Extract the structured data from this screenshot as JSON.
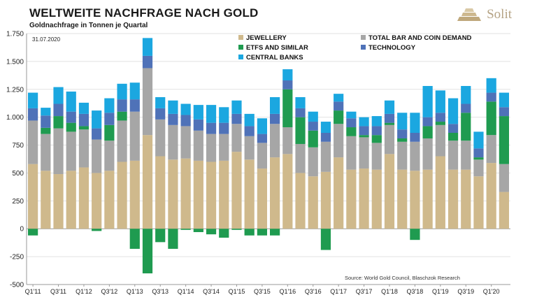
{
  "header": {
    "title": "WELTWEITE NACHFRAGE NACH GOLD",
    "subtitle": "Goldnachfrage in Tonnen je Quartal"
  },
  "logo": {
    "text": "Solit"
  },
  "chart_data": {
    "type": "bar",
    "stacked": true,
    "title": "WELTWEITE NACHFRAGE NACH GOLD",
    "subtitle": "Goldnachfrage in Tonnen je Quartal",
    "date_label": "31.07.2020",
    "source": "Source: World Gold Council, Blaschzok Research",
    "ylim": [
      -500,
      1750
    ],
    "yticks": [
      -500,
      -250,
      0,
      250,
      500,
      750,
      1000,
      1250,
      1500,
      1750
    ],
    "ytick_labels": [
      "-500",
      "-250",
      "0",
      "250",
      "500",
      "750",
      "1.000",
      "1.250",
      "1.500",
      "1.750"
    ],
    "xtick_labels": [
      "Q1'11",
      "Q3'11",
      "Q1'12",
      "Q3'12",
      "Q1'13",
      "Q3'13",
      "Q1'14",
      "Q3'14",
      "Q1'15",
      "Q3'15",
      "Q1'16",
      "Q3'16",
      "Q1'17",
      "Q3'17",
      "Q1'18",
      "Q3'18",
      "Q1'19",
      "Q3'19",
      "Q1'20"
    ],
    "categories": [
      "Q1'11",
      "Q2'11",
      "Q3'11",
      "Q4'11",
      "Q1'12",
      "Q2'12",
      "Q3'12",
      "Q4'12",
      "Q1'13",
      "Q2'13",
      "Q3'13",
      "Q4'13",
      "Q1'14",
      "Q2'14",
      "Q3'14",
      "Q4'14",
      "Q1'15",
      "Q2'15",
      "Q3'15",
      "Q4'15",
      "Q1'16",
      "Q2'16",
      "Q3'16",
      "Q4'16",
      "Q1'17",
      "Q2'17",
      "Q3'17",
      "Q4'17",
      "Q1'18",
      "Q2'18",
      "Q3'18",
      "Q4'18",
      "Q1'19",
      "Q2'19",
      "Q3'19",
      "Q4'19",
      "Q1'20",
      "Q2'20"
    ],
    "series": [
      {
        "name": "JEWELLERY",
        "color": "#cfb98c",
        "values": [
          580,
          520,
          490,
          520,
          550,
          500,
          520,
          600,
          610,
          840,
          650,
          620,
          630,
          610,
          600,
          610,
          690,
          620,
          540,
          640,
          670,
          500,
          470,
          510,
          640,
          530,
          540,
          530,
          670,
          530,
          520,
          530,
          650,
          530,
          530,
          470,
          590,
          330
        ]
      },
      {
        "name": "TOTAL BAR AND COIN DEMAND",
        "color": "#a6a6a6",
        "values": [
          390,
          330,
          410,
          350,
          340,
          300,
          270,
          370,
          440,
          600,
          330,
          310,
          290,
          270,
          250,
          240,
          250,
          210,
          230,
          300,
          240,
          260,
          260,
          270,
          300,
          300,
          280,
          240,
          260,
          250,
          260,
          280,
          280,
          260,
          260,
          150,
          250,
          250
        ]
      },
      {
        "name": "ETFS AND SIMILAR",
        "color": "#1f9b50",
        "values": [
          -60,
          55,
          110,
          80,
          30,
          -20,
          140,
          80,
          -180,
          -400,
          -120,
          -180,
          -10,
          -30,
          -50,
          -80,
          -10,
          -60,
          -60,
          -60,
          340,
          240,
          150,
          -190,
          120,
          80,
          20,
          70,
          20,
          30,
          -100,
          110,
          30,
          70,
          250,
          20,
          300,
          430
        ]
      },
      {
        "name": "TECHNOLOGY",
        "color": "#4f72b8",
        "values": [
          110,
          110,
          110,
          100,
          110,
          100,
          110,
          110,
          110,
          110,
          100,
          100,
          100,
          100,
          100,
          100,
          90,
          90,
          80,
          90,
          80,
          80,
          80,
          80,
          80,
          80,
          80,
          80,
          80,
          80,
          80,
          80,
          80,
          80,
          80,
          80,
          80,
          80
        ]
      },
      {
        "name": "CENTRAL BANKS",
        "color": "#1ba7e0",
        "values": [
          140,
          70,
          150,
          180,
          100,
          160,
          130,
          140,
          150,
          160,
          100,
          120,
          100,
          130,
          160,
          140,
          120,
          110,
          140,
          150,
          100,
          100,
          90,
          100,
          70,
          60,
          80,
          90,
          120,
          150,
          180,
          280,
          200,
          230,
          160,
          150,
          130,
          130
        ]
      }
    ]
  }
}
